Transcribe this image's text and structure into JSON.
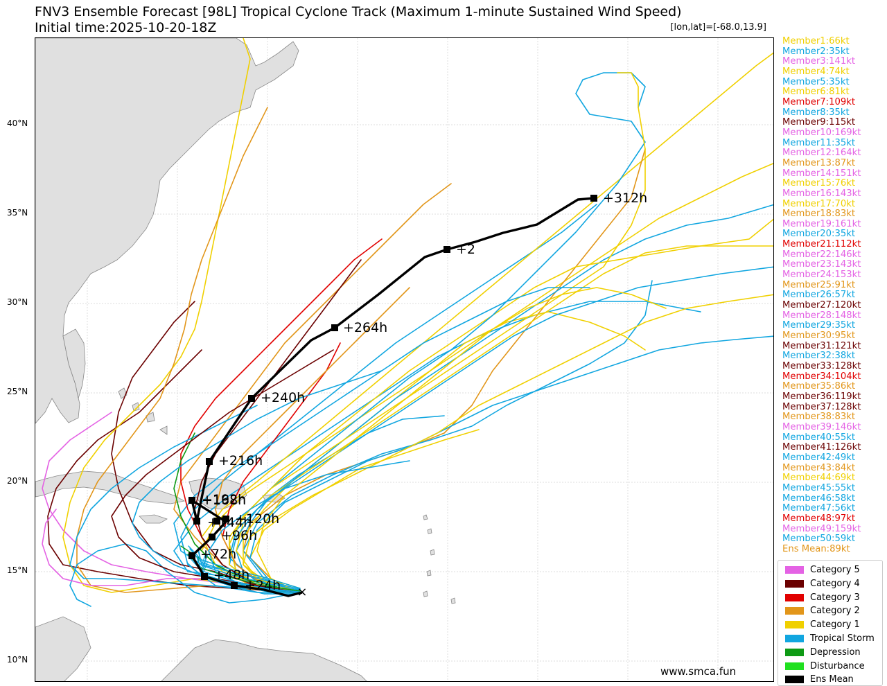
{
  "title": "FNV3 Ensemble Forecast [98L] Tropical Cyclone Track (Maximum 1-minute Sustained Wind Speed)",
  "subtitle": "Initial time:2025-10-20-18Z",
  "coordinate_readout": "[lon,lat]=[-68.0,13.9]",
  "credit": "www.smca.fun",
  "lat_labels": [
    "40°N",
    "35°N",
    "30°N",
    "25°N",
    "20°N",
    "15°N",
    "10°N"
  ],
  "colors": {
    "cat5": "#e462e4",
    "cat4": "#6b0000",
    "cat3": "#e10000",
    "cat2": "#e2961a",
    "cat1": "#f0d000",
    "ts": "#11a6e0",
    "td": "#0e9a14",
    "disturbance": "#20e020",
    "mean": "#000000",
    "land": "#e0e0e0",
    "coast": "#888888",
    "grid": "#dddddd"
  },
  "members": [
    {
      "text": "Member1:66kt",
      "color": "#f0d000"
    },
    {
      "text": "Member2:35kt",
      "color": "#11a6e0"
    },
    {
      "text": "Member3:141kt",
      "color": "#e462e4"
    },
    {
      "text": "Member4:74kt",
      "color": "#f0d000"
    },
    {
      "text": "Member5:35kt",
      "color": "#11a6e0"
    },
    {
      "text": "Member6:81kt",
      "color": "#f0d000"
    },
    {
      "text": "Member7:109kt",
      "color": "#e10000"
    },
    {
      "text": "Member8:35kt",
      "color": "#11a6e0"
    },
    {
      "text": "Member9:115kt",
      "color": "#6b0000"
    },
    {
      "text": "Member10:169kt",
      "color": "#e462e4"
    },
    {
      "text": "Member11:35kt",
      "color": "#11a6e0"
    },
    {
      "text": "Member12:164kt",
      "color": "#e462e4"
    },
    {
      "text": "Member13:87kt",
      "color": "#e2961a"
    },
    {
      "text": "Member14:151kt",
      "color": "#e462e4"
    },
    {
      "text": "Member15:76kt",
      "color": "#f0d000"
    },
    {
      "text": "Member16:143kt",
      "color": "#e462e4"
    },
    {
      "text": "Member17:70kt",
      "color": "#f0d000"
    },
    {
      "text": "Member18:83kt",
      "color": "#e2961a"
    },
    {
      "text": "Member19:161kt",
      "color": "#e462e4"
    },
    {
      "text": "Member20:35kt",
      "color": "#11a6e0"
    },
    {
      "text": "Member21:112kt",
      "color": "#e10000"
    },
    {
      "text": "Member22:146kt",
      "color": "#e462e4"
    },
    {
      "text": "Member23:143kt",
      "color": "#e462e4"
    },
    {
      "text": "Member24:153kt",
      "color": "#e462e4"
    },
    {
      "text": "Member25:91kt",
      "color": "#e2961a"
    },
    {
      "text": "Member26:57kt",
      "color": "#11a6e0"
    },
    {
      "text": "Member27:120kt",
      "color": "#6b0000"
    },
    {
      "text": "Member28:148kt",
      "color": "#e462e4"
    },
    {
      "text": "Member29:35kt",
      "color": "#11a6e0"
    },
    {
      "text": "Member30:95kt",
      "color": "#e2961a"
    },
    {
      "text": "Member31:121kt",
      "color": "#6b0000"
    },
    {
      "text": "Member32:38kt",
      "color": "#11a6e0"
    },
    {
      "text": "Member33:128kt",
      "color": "#6b0000"
    },
    {
      "text": "Member34:104kt",
      "color": "#e10000"
    },
    {
      "text": "Member35:86kt",
      "color": "#e2961a"
    },
    {
      "text": "Member36:119kt",
      "color": "#6b0000"
    },
    {
      "text": "Member37:128kt",
      "color": "#6b0000"
    },
    {
      "text": "Member38:83kt",
      "color": "#e2961a"
    },
    {
      "text": "Member39:146kt",
      "color": "#e462e4"
    },
    {
      "text": "Member40:55kt",
      "color": "#11a6e0"
    },
    {
      "text": "Member41:126kt",
      "color": "#6b0000"
    },
    {
      "text": "Member42:49kt",
      "color": "#11a6e0"
    },
    {
      "text": "Member43:84kt",
      "color": "#e2961a"
    },
    {
      "text": "Member44:69kt",
      "color": "#f0d000"
    },
    {
      "text": "Member45:55kt",
      "color": "#11a6e0"
    },
    {
      "text": "Member46:58kt",
      "color": "#11a6e0"
    },
    {
      "text": "Member47:56kt",
      "color": "#11a6e0"
    },
    {
      "text": "Member48:97kt",
      "color": "#e10000"
    },
    {
      "text": "Member49:159kt",
      "color": "#e462e4"
    },
    {
      "text": "Member50:59kt",
      "color": "#11a6e0"
    },
    {
      "text": "Ens Mean:89kt",
      "color": "#e2961a"
    }
  ],
  "legend": [
    {
      "label": "Category 5",
      "color": "#e462e4"
    },
    {
      "label": "Category 4",
      "color": "#6b0000"
    },
    {
      "label": "Category 3",
      "color": "#e10000"
    },
    {
      "label": "Category 2",
      "color": "#e2961a"
    },
    {
      "label": "Category 1",
      "color": "#f0d000"
    },
    {
      "label": "Tropical Storm",
      "color": "#11a6e0"
    },
    {
      "label": "Depression",
      "color": "#0e9a14"
    },
    {
      "label": "Disturbance",
      "color": "#20e020"
    },
    {
      "label": "Ens Mean",
      "color": "#000000"
    }
  ],
  "mean_track": {
    "start_marker": "×",
    "hour_labels": [
      "+24h",
      "+48h",
      "+72h",
      "+96h",
      "+120h",
      "+144h",
      "+168h",
      "+192h",
      "+216h",
      "+240h",
      "+264h",
      "+2",
      "+312h"
    ]
  }
}
